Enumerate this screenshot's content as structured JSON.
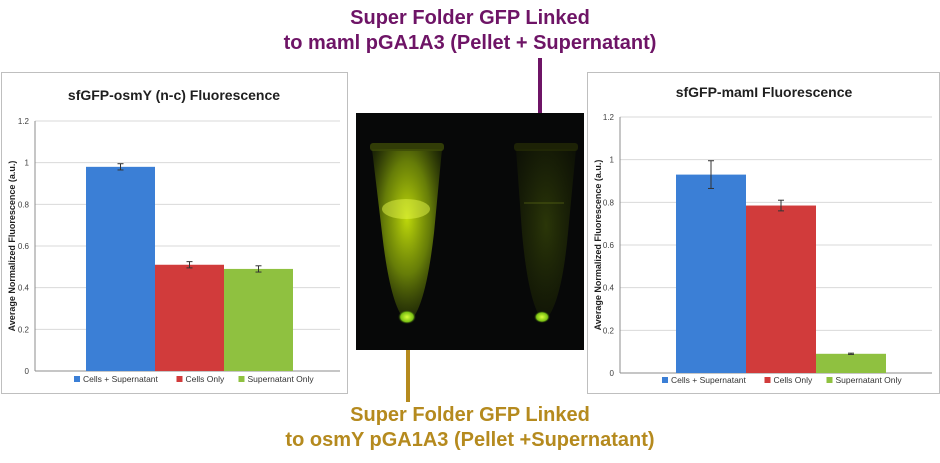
{
  "captions": {
    "top": [
      "Super Folder GFP Linked",
      "to maml pGA1A3 (Pellet + Supernatant)"
    ],
    "bottom": [
      "Super Folder GFP Linked",
      "to osmY pGA1A3 (Pellet +Supernatant)"
    ],
    "top_color": "#6e1466",
    "bottom_color": "#b58a1e"
  },
  "series_colors": [
    "#3b7fd6",
    "#d13b3b",
    "#8fc140"
  ],
  "chart_data": [
    {
      "type": "bar",
      "title": "sfGFP-osmY (n-c) Fluorescence",
      "ylabel": "Average Normalized Fluorescence (a.u.)",
      "xlabel": "",
      "ylim": [
        0,
        1.2
      ],
      "yticks": [
        "0",
        "0.2",
        "0.4",
        "0.6",
        "0.8",
        "1",
        "1.2"
      ],
      "grid": true,
      "legend_position": "bottom",
      "series": [
        {
          "name": "Cells + Supernatant",
          "value": 0.98,
          "error": 0.015
        },
        {
          "name": "Cells Only",
          "value": 0.51,
          "error": 0.015
        },
        {
          "name": "Supernatant Only",
          "value": 0.49,
          "error": 0.015
        }
      ]
    },
    {
      "type": "bar",
      "title": "sfGFP-mamI Fluorescence",
      "ylabel": "Average Normalized Fluorescence (a.u.)",
      "xlabel": "",
      "ylim": [
        0,
        1.2
      ],
      "yticks": [
        "0",
        "0.2",
        "0.4",
        "0.6",
        "0.8",
        "1",
        "1.2"
      ],
      "grid": true,
      "legend_position": "bottom",
      "series": [
        {
          "name": "Cells + Supernatant",
          "value": 0.93,
          "error": 0.065
        },
        {
          "name": "Cells Only",
          "value": 0.785,
          "error": 0.025
        },
        {
          "name": "Supernatant Only",
          "value": 0.09,
          "error": 0.003
        }
      ]
    }
  ]
}
